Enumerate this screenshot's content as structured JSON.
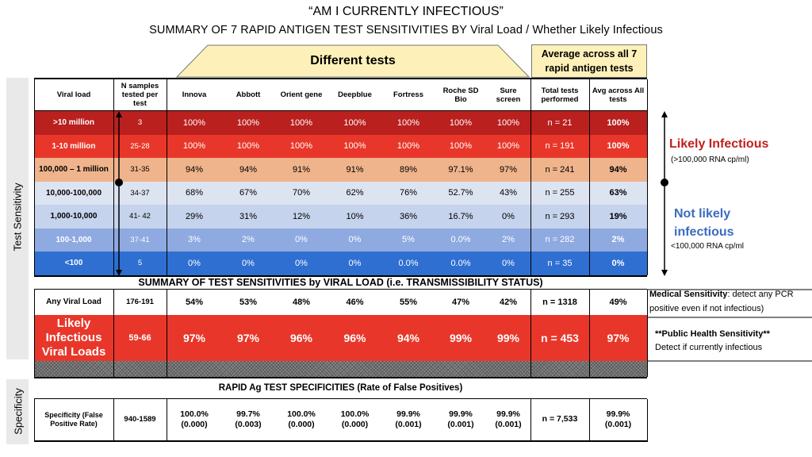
{
  "title_line1": "“AM I CURRENTLY INFECTIOUS”",
  "title_line2": "SUMMARY OF 7 RAPID ANTIGEN TEST SENSITIVITIES BY Viral Load / Whether Likely Infectious",
  "different_tests_label": "Different tests",
  "average_box_label": "Average across all 7 rapid antigen tests",
  "side_label_sensitivity": "Test Sensitivity",
  "side_label_specificity": "Specificity",
  "headers": [
    "Viral load",
    "N samples tested per test",
    "Innova",
    "Abbott",
    "Orient gene",
    "Deepblue",
    "Fortress",
    "Roche SD Bio",
    "Sure screen",
    "Total tests performed",
    "Avg across All tests"
  ],
  "rows": [
    {
      "viral_load": ">10 million",
      "n": "3",
      "values": [
        "100%",
        "100%",
        "100%",
        "100%",
        "100%",
        "100%",
        "100%"
      ],
      "total": "n = 21",
      "avg": "100%",
      "bg": "#b9201e",
      "color": "#ffffff"
    },
    {
      "viral_load": "1-10 million",
      "n": "25-28",
      "values": [
        "100%",
        "100%",
        "100%",
        "100%",
        "100%",
        "100%",
        "100%"
      ],
      "total": "n = 191",
      "avg": "100%",
      "bg": "#e8372a",
      "color": "#ffffff"
    },
    {
      "viral_load": "100,000 – 1 million",
      "n": "31-35",
      "values": [
        "94%",
        "94%",
        "91%",
        "91%",
        "89%",
        "97.1%",
        "97%"
      ],
      "total": "n = 241",
      "avg": "94%",
      "bg": "#efb48c",
      "color": "#000000"
    },
    {
      "viral_load": "10,000-100,000",
      "n": "34-37",
      "values": [
        "68%",
        "67%",
        "70%",
        "62%",
        "76%",
        "52.7%",
        "43%"
      ],
      "total": "n = 255",
      "avg": "63%",
      "bg": "#dde4f1",
      "color": "#000000"
    },
    {
      "viral_load": "1,000-10,000",
      "n": "41- 42",
      "values": [
        "29%",
        "31%",
        "12%",
        "10%",
        "36%",
        "16.7%",
        "0%"
      ],
      "total": "n = 293",
      "avg": "19%",
      "bg": "#c5d3ec",
      "color": "#000000"
    },
    {
      "viral_load": "100-1,000",
      "n": "37-41",
      "values": [
        "3%",
        "2%",
        "0%",
        "0%",
        "5%",
        "0.0%",
        "2%"
      ],
      "total": "n = 282",
      "avg": "2%",
      "bg": "#8eaae0",
      "color": "#ffffff"
    },
    {
      "viral_load": "<100",
      "n": "5",
      "values": [
        "0%",
        "0%",
        "0%",
        "0%",
        "0.0%",
        "0.0%",
        "0%"
      ],
      "total": "n = 35",
      "avg": "0%",
      "bg": "#2f6fd1",
      "color": "#ffffff"
    }
  ],
  "summary_title": "SUMMARY OF TEST SENSITIVITIES by VIRAL LOAD (i.e. TRANSMISSIBILITY STATUS)",
  "any_row": {
    "viral_load": "Any Viral Load",
    "n": "176-191",
    "values": [
      "54%",
      "53%",
      "48%",
      "46%",
      "55%",
      "47%",
      "42%"
    ],
    "total": "n = 1318",
    "avg": "49%"
  },
  "likely_row": {
    "viral_load": "Likely Infectious Viral Loads",
    "n": "59-66",
    "values": [
      "97%",
      "97%",
      "96%",
      "96%",
      "94%",
      "99%",
      "99%"
    ],
    "total": "n = 453",
    "avg": "97%",
    "bg": "#e8372a"
  },
  "spec_title": "RAPID Ag TEST SPECIFICITIES (Rate of False Positives)",
  "spec_row": {
    "viral_load": "Specificity (False Positive Rate)",
    "n": "940-1589",
    "values": [
      "100.0% (0.000)",
      "99.7% (0.003)",
      "100.0% (0.000)",
      "100.0% (0.000)",
      "99.9% (0.001)",
      "99.9% (0.001)",
      "99.9% (0.001)"
    ],
    "total": "n = 7,533",
    "avg": "99.9% (0.001)"
  },
  "annotations": {
    "likely_infectious": "Likely Infectious",
    "likely_infectious_sub": "(>100,000 RNA cp/ml)",
    "not_likely": "Not likely infectious",
    "not_likely_sub": "<100,000 RNA cp/ml",
    "medical_bold": "Medical Sensitivity",
    "medical_rest": ": detect any PCR positive even if not infectious)",
    "public_bold": "**Public Health Sensitivity**",
    "public_rest": "Detect if currently infectious"
  },
  "colors": {
    "red": "#c02020",
    "blue": "#3b6bbf",
    "trapezoid": "#fdf1b9"
  }
}
